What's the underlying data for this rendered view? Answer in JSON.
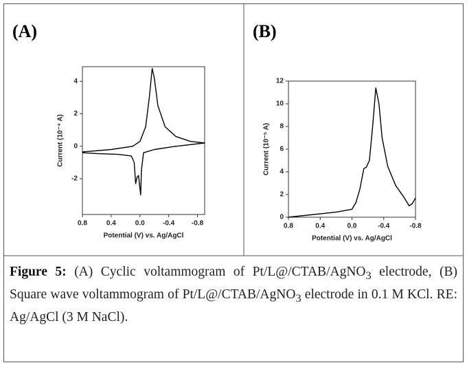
{
  "chart_data": [
    {
      "type": "line",
      "panel_label": "(A)",
      "ylabel": "Current (10⁻⁴ A)",
      "xlabel": "Potential (V) vs. Ag/AgCl",
      "xlim": [
        0.8,
        -0.9
      ],
      "xticks": [
        0.8,
        0.4,
        {
          "value": 0,
          "label": "0.0"
        },
        -0.4,
        -0.8
      ],
      "ylim": [
        -4.2,
        4.9
      ],
      "yticks": [
        4,
        2,
        0,
        -2
      ],
      "color": "#000000",
      "x": [
        0.8,
        0.4,
        0.1,
        0,
        -0.08,
        -0.13,
        -0.17,
        -0.2,
        -0.25,
        -0.35,
        -0.5,
        -0.7,
        -0.9,
        -0.5,
        -0.2,
        -0.05,
        -0.02,
        -0.01,
        0.02,
        0.04,
        0.06,
        0.08,
        0.12,
        0.3,
        0.6,
        0.8
      ],
      "values": [
        -0.35,
        -0.2,
        0,
        0.3,
        1.2,
        3,
        4.8,
        4.2,
        2.5,
        1.2,
        0.6,
        0.3,
        0.2,
        0,
        -0.2,
        -0.4,
        -1.5,
        -3,
        -1.8,
        -1.9,
        -2.3,
        -1,
        -0.6,
        -0.5,
        -0.45,
        -0.4
      ]
    },
    {
      "type": "line",
      "panel_label": "(B)",
      "ylabel": "Current (10⁻⁵ A)",
      "xlabel": "Potential (V) vs. Ag/AgCl",
      "xlim": [
        0.8,
        -0.8
      ],
      "xticks": [
        0.8,
        0.4,
        {
          "value": 0,
          "label": "0.0"
        },
        -0.4,
        -0.8
      ],
      "ylim": [
        0,
        12
      ],
      "yticks": [
        0,
        2,
        4,
        6,
        8,
        10,
        12
      ],
      "color": "#000000",
      "x": [
        0.8,
        0.6,
        0.4,
        0.2,
        0,
        -0.05,
        -0.1,
        -0.15,
        -0.18,
        -0.22,
        -0.26,
        -0.3,
        -0.34,
        -0.38,
        -0.45,
        -0.55,
        -0.65,
        -0.72,
        -0.76,
        -0.8
      ],
      "values": [
        0,
        0.15,
        0.3,
        0.45,
        0.7,
        1.3,
        2.5,
        4.3,
        4.4,
        5,
        8,
        11.4,
        10,
        7,
        4.5,
        2.8,
        1.8,
        1,
        1.2,
        1.7
      ]
    }
  ],
  "caption": {
    "label": "Figure 5:",
    "parts": [
      "(A) Cyclic voltammogram of Pt/L@/CTAB/AgNO",
      "3",
      " electrode, (B) Square wave voltammogram of Pt/L@/CTAB/AgNO",
      "3",
      " electrode in 0.1 M KCl. RE: Ag/AgCl (3 M NaCl)."
    ]
  }
}
